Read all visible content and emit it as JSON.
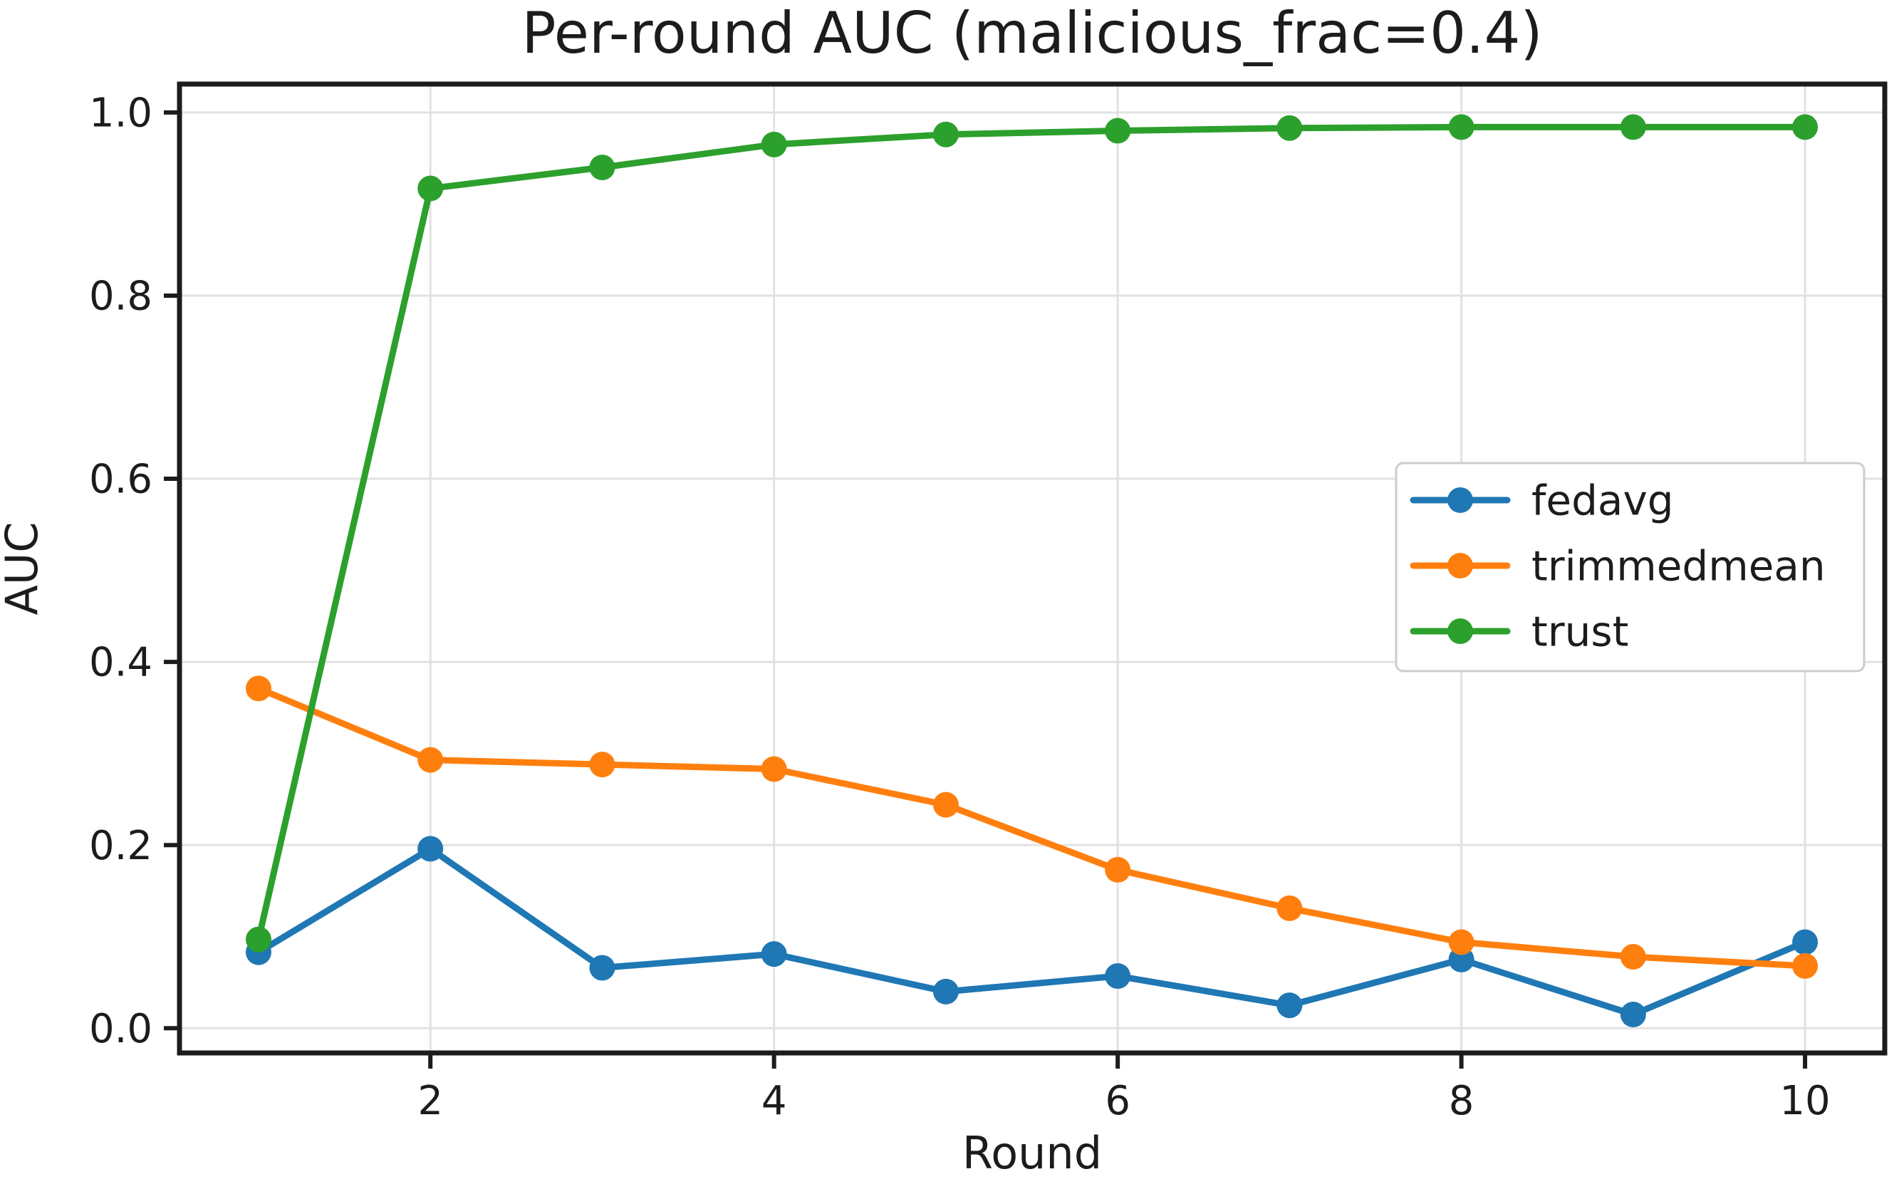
{
  "chart_data": {
    "type": "line",
    "title": "Per-round AUC (malicious_frac=0.4)",
    "xlabel": "Round",
    "ylabel": "AUC",
    "x": [
      1,
      2,
      3,
      4,
      5,
      6,
      7,
      8,
      9,
      10
    ],
    "x_ticks": [
      2,
      4,
      6,
      8,
      10
    ],
    "y_ticks": [
      "0.0",
      "0.2",
      "0.4",
      "0.6",
      "0.8",
      "1.0"
    ],
    "y_tick_values": [
      0.0,
      0.2,
      0.4,
      0.6,
      0.8,
      1.0
    ],
    "xlim": [
      0.54,
      10.464
    ],
    "ylim": [
      -0.027,
      1.031
    ],
    "grid": true,
    "legend_position": "center right",
    "series": [
      {
        "name": "fedavg",
        "color": "#1f77b4",
        "values": [
          0.083,
          0.196,
          0.066,
          0.081,
          0.04,
          0.057,
          0.025,
          0.075,
          0.015,
          0.094
        ]
      },
      {
        "name": "trimmedmean",
        "color": "#ff7f0e",
        "values": [
          0.371,
          0.293,
          0.288,
          0.283,
          0.244,
          0.173,
          0.131,
          0.094,
          0.078,
          0.068
        ]
      },
      {
        "name": "trust",
        "color": "#2ca02c",
        "values": [
          0.097,
          0.917,
          0.94,
          0.965,
          0.976,
          0.98,
          0.983,
          0.984,
          0.984,
          0.984
        ]
      }
    ]
  },
  "styles": {
    "background": "#ffffff",
    "grid_color": "#e2e2e2",
    "spine_color": "#1c1c1c",
    "text_color": "#1c1c1c",
    "legend_border": "#cccccc",
    "legend_fill": "#ffffff"
  }
}
